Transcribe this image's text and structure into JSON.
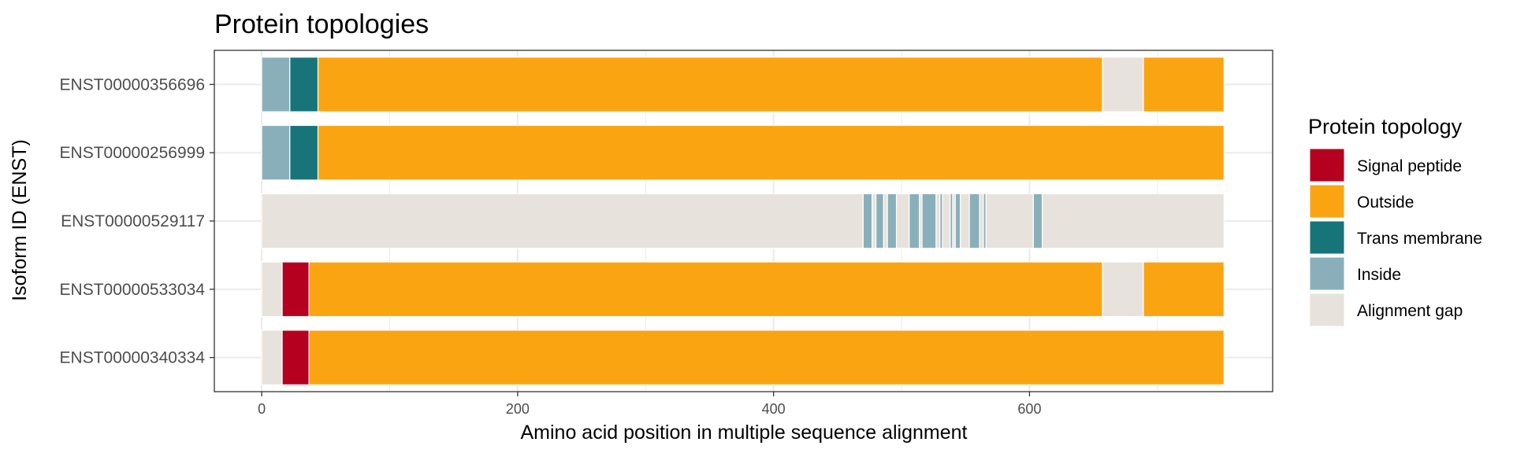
{
  "chart_data": {
    "type": "bar",
    "title": "Protein topologies",
    "xlabel": "Amino acid position in multiple sequence alignment",
    "ylabel": "Isoform ID (ENST)",
    "xlim": [
      -37,
      790
    ],
    "xticks": [
      0,
      200,
      400,
      600
    ],
    "grid": true,
    "legend": {
      "title": "Protein topology",
      "position": "right",
      "entries": [
        {
          "key": "signal",
          "label": "Signal peptide",
          "color": "#b5001f"
        },
        {
          "key": "outside",
          "label": "Outside",
          "color": "#fba412"
        },
        {
          "key": "tm",
          "label": "Trans membrane",
          "color": "#17757a"
        },
        {
          "key": "inside",
          "label": "Inside",
          "color": "#89b0ba"
        },
        {
          "key": "gap",
          "label": "Alignment gap",
          "color": "#e8e2dd"
        }
      ]
    },
    "categories": [
      "ENST00000356696",
      "ENST00000256999",
      "ENST00000529117",
      "ENST00000533034",
      "ENST00000340334"
    ],
    "series": [
      {
        "category": "ENST00000356696",
        "segments": [
          {
            "start": 0,
            "end": 22,
            "type": "inside"
          },
          {
            "start": 22,
            "end": 44,
            "type": "tm"
          },
          {
            "start": 44,
            "end": 657,
            "type": "outside"
          },
          {
            "start": 657,
            "end": 689,
            "type": "gap"
          },
          {
            "start": 689,
            "end": 752,
            "type": "outside"
          }
        ]
      },
      {
        "category": "ENST00000256999",
        "segments": [
          {
            "start": 0,
            "end": 22,
            "type": "inside"
          },
          {
            "start": 22,
            "end": 44,
            "type": "tm"
          },
          {
            "start": 44,
            "end": 752,
            "type": "outside"
          }
        ]
      },
      {
        "category": "ENST00000529117",
        "segments": [
          {
            "start": 0,
            "end": 470,
            "type": "gap"
          },
          {
            "start": 470,
            "end": 477,
            "type": "inside"
          },
          {
            "start": 477,
            "end": 480,
            "type": "gap"
          },
          {
            "start": 480,
            "end": 486,
            "type": "inside"
          },
          {
            "start": 486,
            "end": 489,
            "type": "gap"
          },
          {
            "start": 489,
            "end": 496,
            "type": "inside"
          },
          {
            "start": 496,
            "end": 506,
            "type": "gap"
          },
          {
            "start": 506,
            "end": 514,
            "type": "inside"
          },
          {
            "start": 514,
            "end": 516,
            "type": "gap"
          },
          {
            "start": 516,
            "end": 527,
            "type": "inside"
          },
          {
            "start": 527,
            "end": 530,
            "type": "gap"
          },
          {
            "start": 530,
            "end": 532,
            "type": "inside"
          },
          {
            "start": 532,
            "end": 538,
            "type": "gap"
          },
          {
            "start": 538,
            "end": 540,
            "type": "inside"
          },
          {
            "start": 540,
            "end": 542,
            "type": "gap"
          },
          {
            "start": 542,
            "end": 546,
            "type": "inside"
          },
          {
            "start": 546,
            "end": 553,
            "type": "gap"
          },
          {
            "start": 553,
            "end": 561,
            "type": "inside"
          },
          {
            "start": 561,
            "end": 564,
            "type": "gap"
          },
          {
            "start": 564,
            "end": 566,
            "type": "inside"
          },
          {
            "start": 566,
            "end": 603,
            "type": "gap"
          },
          {
            "start": 603,
            "end": 610,
            "type": "inside"
          },
          {
            "start": 610,
            "end": 752,
            "type": "gap"
          }
        ]
      },
      {
        "category": "ENST00000533034",
        "segments": [
          {
            "start": 0,
            "end": 16,
            "type": "gap"
          },
          {
            "start": 16,
            "end": 37,
            "type": "signal"
          },
          {
            "start": 37,
            "end": 657,
            "type": "outside"
          },
          {
            "start": 657,
            "end": 689,
            "type": "gap"
          },
          {
            "start": 689,
            "end": 752,
            "type": "outside"
          }
        ]
      },
      {
        "category": "ENST00000340334",
        "segments": [
          {
            "start": 0,
            "end": 16,
            "type": "gap"
          },
          {
            "start": 16,
            "end": 37,
            "type": "signal"
          },
          {
            "start": 37,
            "end": 752,
            "type": "outside"
          }
        ]
      }
    ]
  }
}
